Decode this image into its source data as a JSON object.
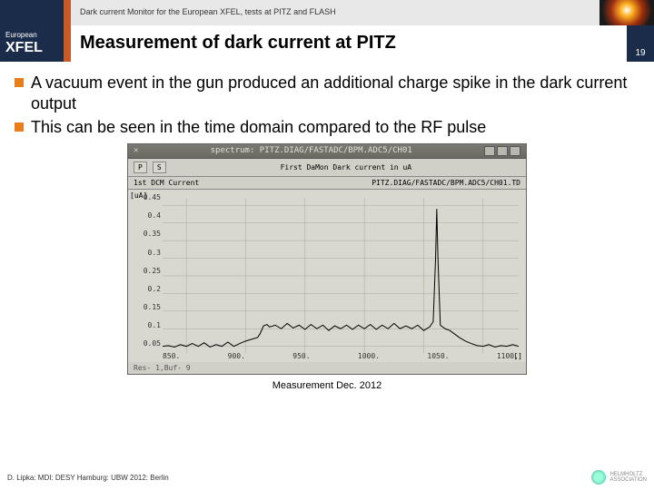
{
  "header": {
    "subtitle": "Dark current Monitor for the European XFEL, tests at PITZ and FLASH",
    "logo_top": "European",
    "logo_bottom": "XFEL",
    "title": "Measurement of dark current at PITZ",
    "page_number": "19"
  },
  "bullets": [
    "A vacuum event in the gun produced an additional charge spike in the dark current output",
    "This can be seen in the time domain compared to the RF pulse"
  ],
  "chart": {
    "window_title": "spectrum: PITZ.DIAG/FASTADC/BPM.ADC5/CH01",
    "toolbar_btns": [
      "P",
      "S"
    ],
    "toolbar_title": "First DaMon Dark current in uA",
    "header2_left": "1st DCM Current",
    "header2_right": "PITZ.DIAG/FASTADC/BPM.ADC5/CH01.TD",
    "y_unit": "[uA]",
    "x_unit": "[]",
    "y_ticks": [
      "0.45",
      "0.4",
      "0.35",
      "0.3",
      "0.25",
      "0.2",
      "0.15",
      "0.1",
      "0.05"
    ],
    "x_ticks": [
      "850.",
      "900.",
      "950.",
      "1000.",
      "1050.",
      "1100."
    ],
    "x_range": [
      830,
      1130
    ],
    "y_range": [
      0.03,
      0.47
    ],
    "grid_color": "#a8a8a0",
    "line_color": "#000000",
    "background_color": "#d8d8d0",
    "footer_text": "Res- 1,Buf- 9",
    "series": [
      [
        830,
        0.05
      ],
      [
        835,
        0.052
      ],
      [
        840,
        0.048
      ],
      [
        845,
        0.055
      ],
      [
        850,
        0.05
      ],
      [
        855,
        0.058
      ],
      [
        860,
        0.05
      ],
      [
        865,
        0.06
      ],
      [
        870,
        0.048
      ],
      [
        875,
        0.055
      ],
      [
        880,
        0.05
      ],
      [
        885,
        0.062
      ],
      [
        890,
        0.05
      ],
      [
        895,
        0.058
      ],
      [
        900,
        0.065
      ],
      [
        905,
        0.07
      ],
      [
        910,
        0.075
      ],
      [
        912,
        0.085
      ],
      [
        914,
        0.1
      ],
      [
        915,
        0.108
      ],
      [
        918,
        0.112
      ],
      [
        920,
        0.105
      ],
      [
        925,
        0.11
      ],
      [
        930,
        0.1
      ],
      [
        935,
        0.115
      ],
      [
        940,
        0.102
      ],
      [
        945,
        0.11
      ],
      [
        950,
        0.098
      ],
      [
        955,
        0.112
      ],
      [
        960,
        0.1
      ],
      [
        965,
        0.11
      ],
      [
        970,
        0.095
      ],
      [
        975,
        0.108
      ],
      [
        980,
        0.1
      ],
      [
        985,
        0.11
      ],
      [
        990,
        0.098
      ],
      [
        995,
        0.11
      ],
      [
        1000,
        0.1
      ],
      [
        1005,
        0.112
      ],
      [
        1010,
        0.098
      ],
      [
        1015,
        0.11
      ],
      [
        1020,
        0.1
      ],
      [
        1025,
        0.115
      ],
      [
        1030,
        0.1
      ],
      [
        1035,
        0.108
      ],
      [
        1040,
        0.1
      ],
      [
        1045,
        0.11
      ],
      [
        1050,
        0.095
      ],
      [
        1055,
        0.105
      ],
      [
        1058,
        0.12
      ],
      [
        1060,
        0.3
      ],
      [
        1061,
        0.44
      ],
      [
        1062,
        0.3
      ],
      [
        1064,
        0.11
      ],
      [
        1068,
        0.1
      ],
      [
        1072,
        0.095
      ],
      [
        1076,
        0.085
      ],
      [
        1080,
        0.075
      ],
      [
        1085,
        0.065
      ],
      [
        1090,
        0.058
      ],
      [
        1095,
        0.052
      ],
      [
        1100,
        0.05
      ],
      [
        1105,
        0.055
      ],
      [
        1110,
        0.048
      ],
      [
        1115,
        0.052
      ],
      [
        1120,
        0.05
      ],
      [
        1125,
        0.055
      ],
      [
        1130,
        0.05
      ]
    ]
  },
  "caption": "Measurement Dec. 2012",
  "footer": {
    "left": "D. Lipka: MDI: DESY Hamburg: UBW 2012: Berlin",
    "assoc_top": "HELMHOLTZ",
    "assoc_bot": "ASSOCIATION"
  },
  "colors": {
    "navy": "#1a2c4a",
    "orange_accent": "#c85a28",
    "bullet_orange": "#e87d1a"
  }
}
